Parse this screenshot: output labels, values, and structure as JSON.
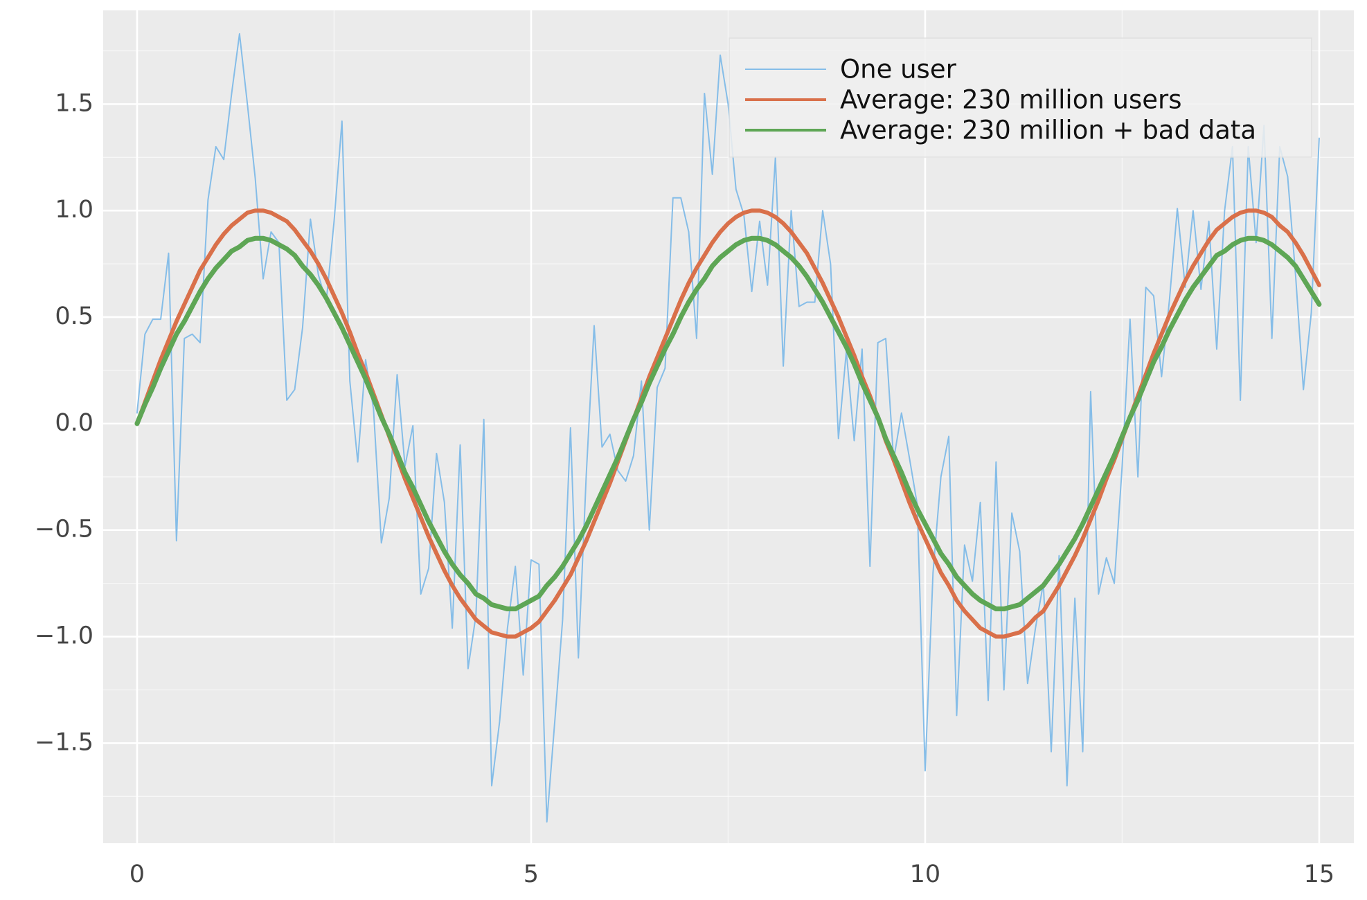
{
  "chart_data": {
    "type": "line",
    "x": [
      0,
      0.1,
      0.2,
      0.3,
      0.4,
      0.5,
      0.6,
      0.7,
      0.8,
      0.9,
      1.0,
      1.1,
      1.2,
      1.3,
      1.4,
      1.5,
      1.6,
      1.7,
      1.8,
      1.9,
      2.0,
      2.1,
      2.2,
      2.3,
      2.4,
      2.5,
      2.6,
      2.7,
      2.8,
      2.9,
      3.0,
      3.1,
      3.2,
      3.3,
      3.4,
      3.5,
      3.6,
      3.7,
      3.8,
      3.9,
      4.0,
      4.1,
      4.2,
      4.3,
      4.4,
      4.5,
      4.6,
      4.7,
      4.8,
      4.9,
      5.0,
      5.1,
      5.2,
      5.3,
      5.4,
      5.5,
      5.6,
      5.7,
      5.8,
      5.9,
      6.0,
      6.1,
      6.2,
      6.3,
      6.4,
      6.5,
      6.6,
      6.7,
      6.8,
      6.9,
      7.0,
      7.1,
      7.2,
      7.3,
      7.4,
      7.5,
      7.6,
      7.7,
      7.8,
      7.9,
      8.0,
      8.1,
      8.2,
      8.3,
      8.4,
      8.5,
      8.6,
      8.7,
      8.8,
      8.9,
      9.0,
      9.1,
      9.2,
      9.3,
      9.4,
      9.5,
      9.6,
      9.7,
      9.8,
      9.9,
      10.0,
      10.1,
      10.2,
      10.3,
      10.4,
      10.5,
      10.6,
      10.7,
      10.8,
      10.9,
      11.0,
      11.1,
      11.2,
      11.3,
      11.4,
      11.5,
      11.6,
      11.7,
      11.8,
      11.9,
      12.0,
      12.1,
      12.2,
      12.3,
      12.4,
      12.5,
      12.6,
      12.7,
      12.8,
      12.9,
      13.0,
      13.1,
      13.2,
      13.3,
      13.4,
      13.5,
      13.6,
      13.7,
      13.8,
      13.9,
      14.0,
      14.1,
      14.2,
      14.3,
      14.4,
      14.5,
      14.6,
      14.7,
      14.8,
      14.9,
      15.0
    ],
    "series": [
      {
        "name": "One user",
        "color": "#85bde8",
        "values": [
          0.05,
          0.42,
          0.49,
          0.49,
          0.8,
          -0.55,
          0.4,
          0.42,
          0.38,
          1.05,
          1.3,
          1.24,
          1.55,
          1.83,
          1.5,
          1.15,
          0.68,
          0.9,
          0.85,
          0.11,
          0.16,
          0.45,
          0.96,
          0.7,
          0.57,
          0.95,
          1.42,
          0.2,
          -0.18,
          0.3,
          0.07,
          -0.56,
          -0.35,
          0.23,
          -0.2,
          -0.01,
          -0.8,
          -0.68,
          -0.14,
          -0.37,
          -0.96,
          -0.1,
          -1.15,
          -0.9,
          0.02,
          -1.7,
          -1.4,
          -0.96,
          -0.67,
          -1.18,
          -0.64,
          -0.66,
          -1.87,
          -1.4,
          -0.92,
          -0.02,
          -1.1,
          -0.24,
          0.46,
          -0.11,
          -0.05,
          -0.22,
          -0.27,
          -0.15,
          0.2,
          -0.5,
          0.17,
          0.26,
          1.06,
          1.06,
          0.9,
          0.4,
          1.55,
          1.17,
          1.73,
          1.5,
          1.1,
          0.98,
          0.62,
          0.95,
          0.65,
          1.25,
          0.27,
          1.0,
          0.55,
          0.57,
          0.57,
          1.0,
          0.75,
          -0.07,
          0.34,
          -0.08,
          0.35,
          -0.67,
          0.38,
          0.4,
          -0.17,
          0.05,
          -0.16,
          -0.38,
          -1.63,
          -0.7,
          -0.25,
          -0.06,
          -1.37,
          -0.57,
          -0.74,
          -0.37,
          -1.3,
          -0.18,
          -1.25,
          -0.42,
          -0.6,
          -1.22,
          -0.96,
          -0.75,
          -1.54,
          -0.62,
          -1.7,
          -0.82,
          -1.54,
          0.15,
          -0.8,
          -0.63,
          -0.75,
          -0.2,
          0.49,
          -0.25,
          0.64,
          0.6,
          0.22,
          0.58,
          1.01,
          0.64,
          1.0,
          0.63,
          0.95,
          0.35,
          1.0,
          1.3,
          0.11,
          1.3,
          0.85,
          1.4,
          0.4,
          1.3,
          1.16,
          0.7,
          0.16,
          0.52,
          1.34
        ]
      },
      {
        "name": "Average: 230 million users",
        "color": "#d9704a",
        "values": [
          0.0,
          0.1,
          0.2,
          0.3,
          0.39,
          0.48,
          0.56,
          0.64,
          0.72,
          0.78,
          0.84,
          0.89,
          0.93,
          0.96,
          0.99,
          1.0,
          1.0,
          0.99,
          0.97,
          0.95,
          0.91,
          0.86,
          0.81,
          0.75,
          0.68,
          0.6,
          0.52,
          0.43,
          0.33,
          0.24,
          0.14,
          0.04,
          -0.06,
          -0.16,
          -0.26,
          -0.35,
          -0.44,
          -0.53,
          -0.61,
          -0.69,
          -0.76,
          -0.82,
          -0.87,
          -0.92,
          -0.95,
          -0.98,
          -0.99,
          -1.0,
          -1.0,
          -0.98,
          -0.96,
          -0.93,
          -0.88,
          -0.83,
          -0.77,
          -0.71,
          -0.63,
          -0.55,
          -0.46,
          -0.37,
          -0.28,
          -0.18,
          -0.08,
          0.02,
          0.12,
          0.22,
          0.31,
          0.4,
          0.49,
          0.58,
          0.66,
          0.73,
          0.79,
          0.85,
          0.9,
          0.94,
          0.97,
          0.99,
          1.0,
          1.0,
          0.99,
          0.97,
          0.94,
          0.9,
          0.85,
          0.8,
          0.73,
          0.66,
          0.58,
          0.5,
          0.41,
          0.32,
          0.22,
          0.13,
          0.03,
          -0.08,
          -0.17,
          -0.27,
          -0.37,
          -0.46,
          -0.54,
          -0.62,
          -0.7,
          -0.76,
          -0.83,
          -0.88,
          -0.92,
          -0.96,
          -0.98,
          -1.0,
          -1.0,
          -0.99,
          -0.98,
          -0.95,
          -0.91,
          -0.88,
          -0.82,
          -0.76,
          -0.69,
          -0.62,
          -0.54,
          -0.45,
          -0.36,
          -0.26,
          -0.17,
          -0.07,
          0.03,
          0.13,
          0.23,
          0.33,
          0.42,
          0.51,
          0.59,
          0.67,
          0.74,
          0.8,
          0.86,
          0.91,
          0.94,
          0.97,
          0.99,
          1.0,
          1.0,
          0.99,
          0.97,
          0.93,
          0.9,
          0.85,
          0.79,
          0.72,
          0.65
        ]
      },
      {
        "name": "Average: 230 million + bad data",
        "color": "#5ea655",
        "values": [
          0.0,
          0.09,
          0.17,
          0.26,
          0.34,
          0.42,
          0.48,
          0.55,
          0.62,
          0.68,
          0.73,
          0.77,
          0.81,
          0.83,
          0.86,
          0.87,
          0.87,
          0.86,
          0.84,
          0.82,
          0.79,
          0.74,
          0.7,
          0.65,
          0.59,
          0.52,
          0.45,
          0.37,
          0.29,
          0.21,
          0.12,
          0.03,
          -0.05,
          -0.14,
          -0.23,
          -0.3,
          -0.38,
          -0.46,
          -0.53,
          -0.6,
          -0.66,
          -0.71,
          -0.75,
          -0.8,
          -0.82,
          -0.85,
          -0.86,
          -0.87,
          -0.87,
          -0.85,
          -0.83,
          -0.81,
          -0.76,
          -0.72,
          -0.67,
          -0.61,
          -0.55,
          -0.48,
          -0.4,
          -0.32,
          -0.24,
          -0.16,
          -0.07,
          0.02,
          0.1,
          0.19,
          0.27,
          0.35,
          0.42,
          0.5,
          0.57,
          0.63,
          0.68,
          0.74,
          0.78,
          0.81,
          0.84,
          0.86,
          0.87,
          0.87,
          0.86,
          0.84,
          0.81,
          0.78,
          0.74,
          0.69,
          0.63,
          0.57,
          0.5,
          0.43,
          0.36,
          0.28,
          0.19,
          0.11,
          0.03,
          -0.07,
          -0.15,
          -0.23,
          -0.32,
          -0.4,
          -0.47,
          -0.54,
          -0.61,
          -0.66,
          -0.72,
          -0.76,
          -0.8,
          -0.83,
          -0.85,
          -0.87,
          -0.87,
          -0.86,
          -0.85,
          -0.82,
          -0.79,
          -0.76,
          -0.71,
          -0.66,
          -0.6,
          -0.54,
          -0.47,
          -0.39,
          -0.31,
          -0.23,
          -0.15,
          -0.06,
          0.03,
          0.11,
          0.2,
          0.29,
          0.36,
          0.44,
          0.51,
          0.58,
          0.64,
          0.69,
          0.74,
          0.79,
          0.81,
          0.84,
          0.86,
          0.87,
          0.87,
          0.86,
          0.84,
          0.81,
          0.78,
          0.74,
          0.68,
          0.62,
          0.56
        ]
      }
    ],
    "xlim": [
      -0.43,
      15.44
    ],
    "ylim": [
      -1.97,
      1.94
    ],
    "xticks": [
      0,
      5,
      10,
      15
    ],
    "yticks": [
      {
        "value": -1.5,
        "label": "−1.5"
      },
      {
        "value": -1.0,
        "label": "−1.0"
      },
      {
        "value": -0.5,
        "label": "−0.5"
      },
      {
        "value": 0.0,
        "label": "0.0"
      },
      0.5,
      {
        "value": 1.0,
        "label": "1.0"
      },
      1.5
    ],
    "minor_xticks": [
      2.5,
      7.5,
      12.5
    ],
    "minor_yticks": [
      -1.75,
      -1.25,
      -0.75,
      -0.25,
      0.25,
      0.75,
      1.25,
      1.75
    ],
    "grid": true,
    "legend": "upper right"
  }
}
